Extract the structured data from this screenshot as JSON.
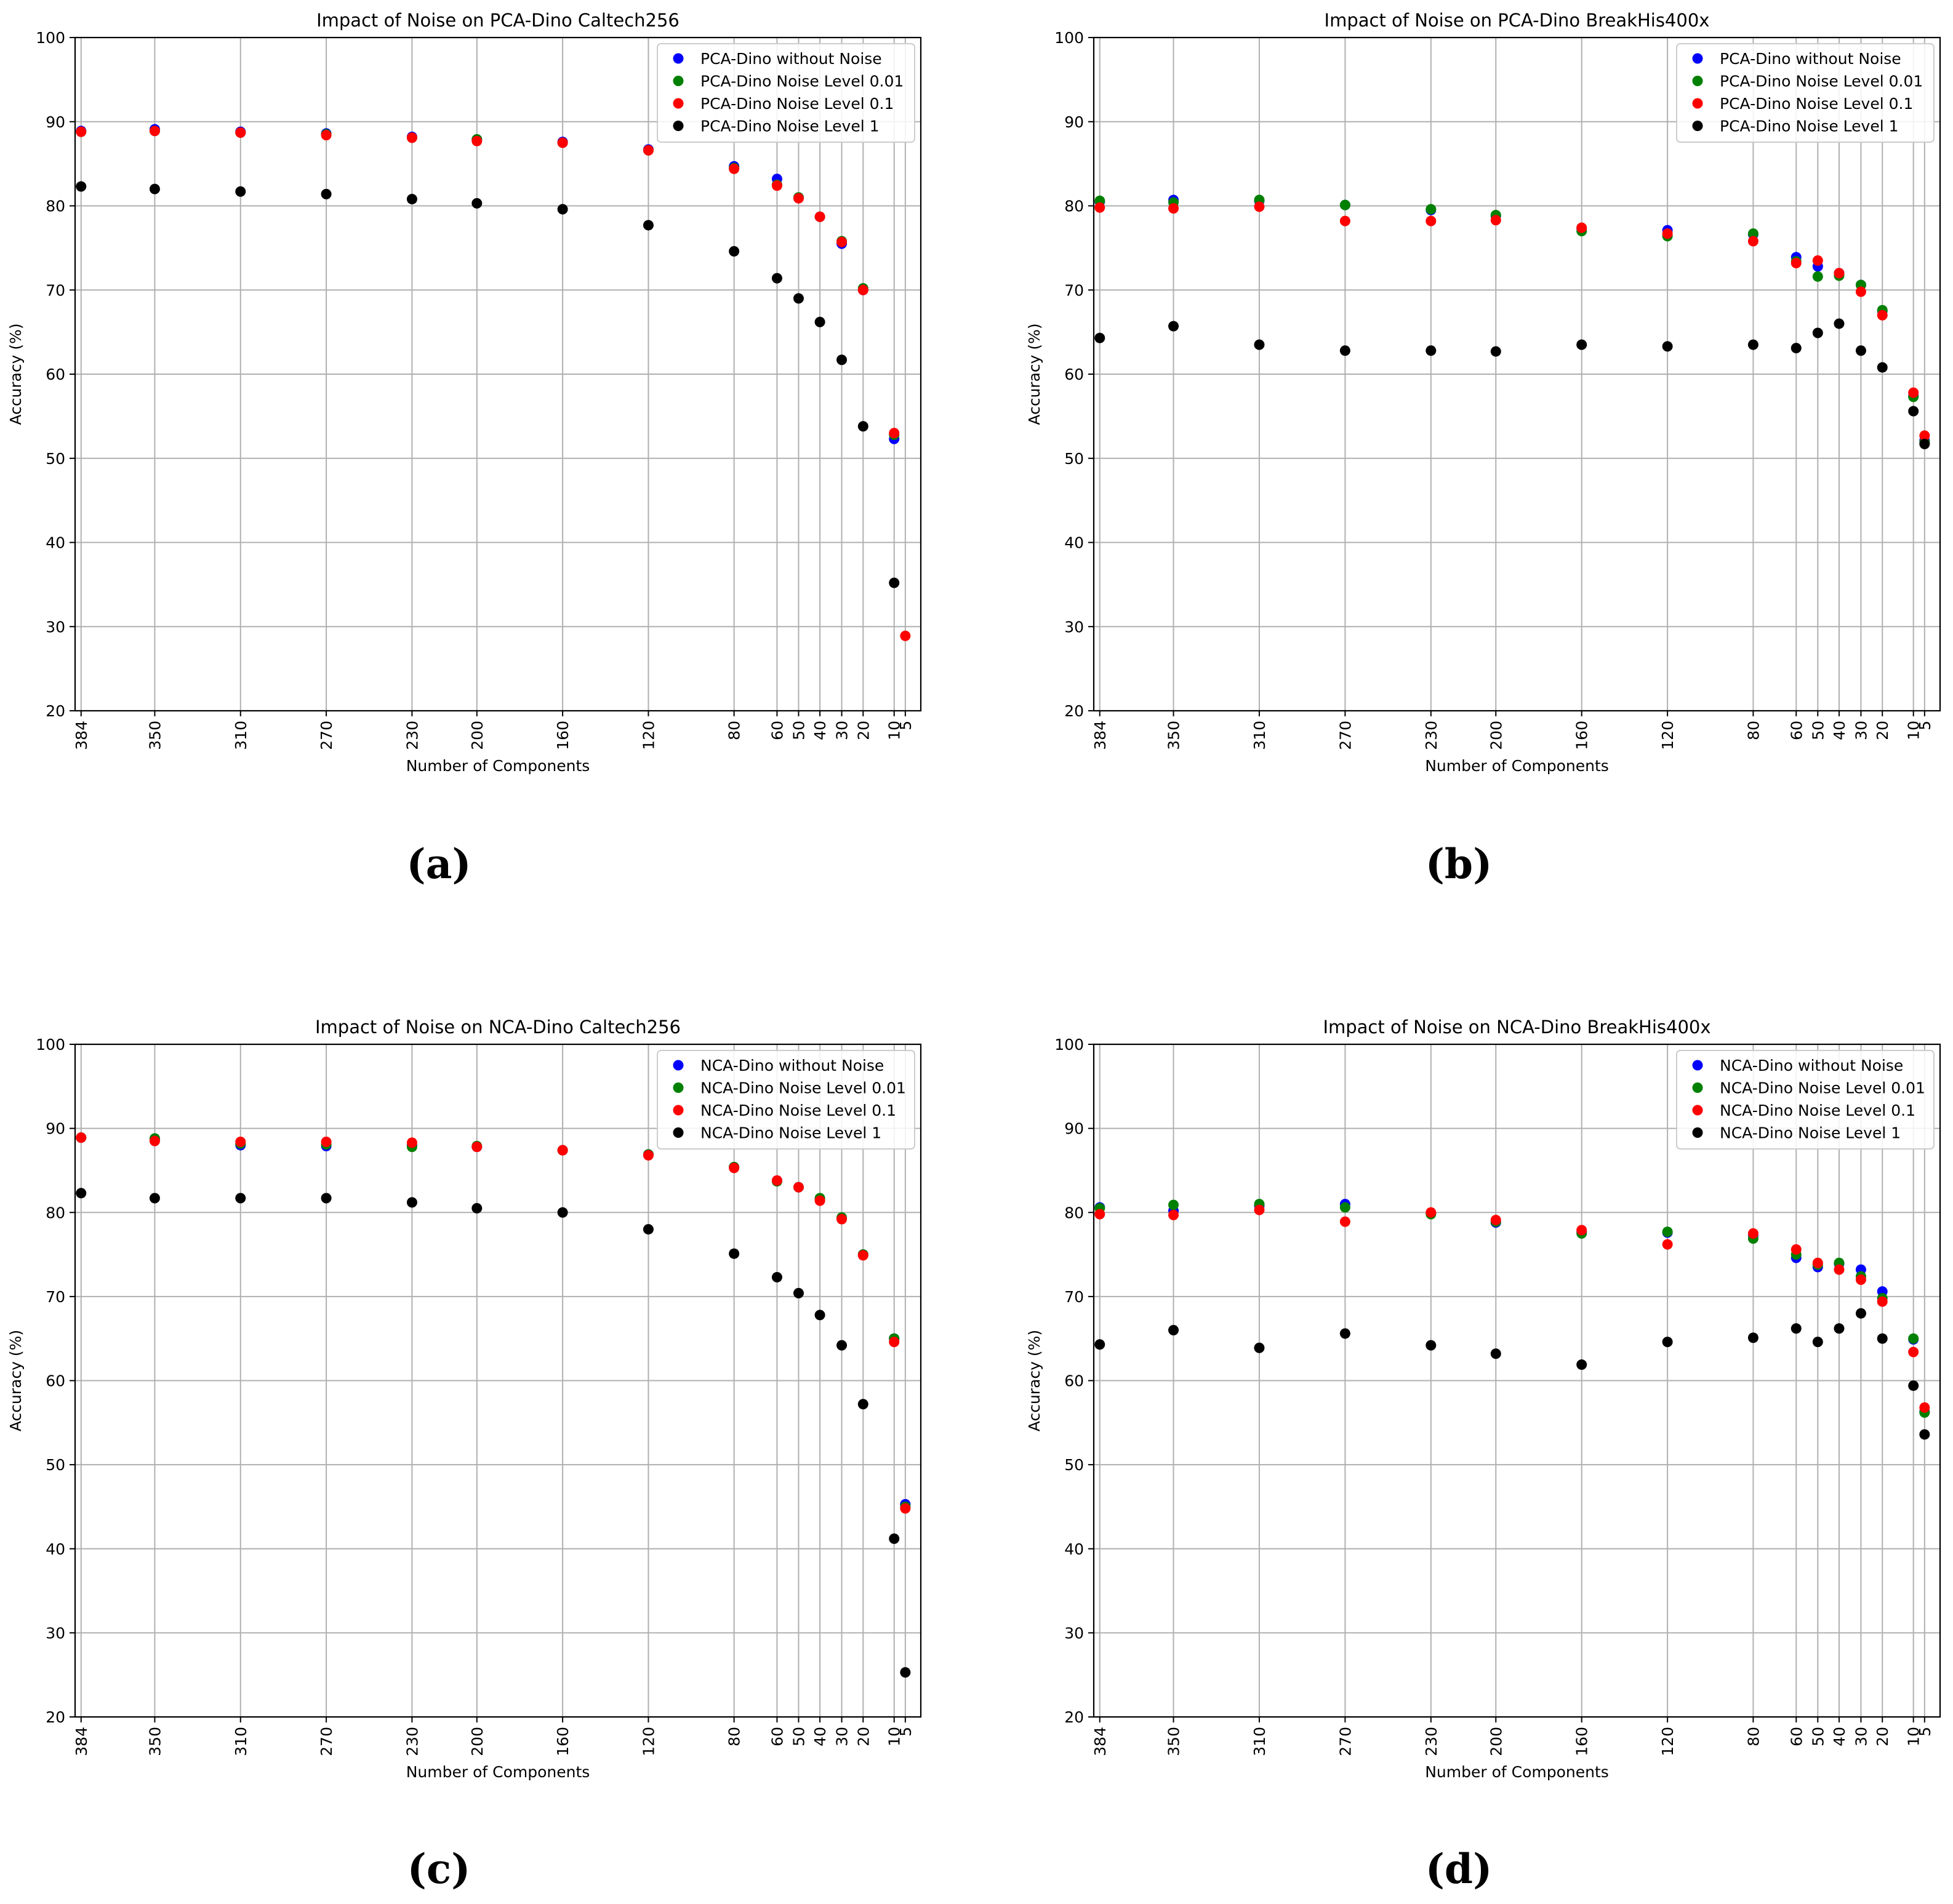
{
  "ticks": [
    "384",
    "350",
    "310",
    "270",
    "230",
    "200",
    "160",
    "120",
    "80",
    "60",
    "50",
    "40",
    "30",
    "20",
    "10",
    "5"
  ],
  "colors": {
    "none": "#0000ff",
    "n001": "#008000",
    "n01": "#ff0000",
    "n1": "#000000"
  },
  "chart_data": [
    {
      "type": "scatter",
      "caption": "(a)",
      "title": "Impact of Noise on PCA-Dino Caltech256",
      "xlabel": "Number of Components",
      "ylabel": "Accuracy (%)",
      "ylim": [
        20,
        100
      ],
      "yticks": [
        "20",
        "30",
        "40",
        "50",
        "60",
        "70",
        "80",
        "90",
        "100"
      ],
      "grid": true,
      "legend_position": "top-right",
      "categories": [
        "384",
        "350",
        "310",
        "270",
        "230",
        "200",
        "160",
        "120",
        "80",
        "60",
        "50",
        "40",
        "30",
        "20",
        "10",
        "5"
      ],
      "series": [
        {
          "name": "PCA-Dino without Noise",
          "color": "#0000ff",
          "values": [
            88.9,
            89.1,
            88.8,
            88.6,
            88.2,
            87.9,
            87.6,
            86.7,
            84.7,
            83.2,
            81.0,
            78.7,
            75.5,
            70.0,
            52.3,
            null
          ]
        },
        {
          "name": "PCA-Dino Noise Level 0.01",
          "color": "#008000",
          "values": [
            88.8,
            88.9,
            88.7,
            88.5,
            88.1,
            87.9,
            87.5,
            86.6,
            84.5,
            82.5,
            81.0,
            78.7,
            75.8,
            70.2,
            52.8,
            null
          ]
        },
        {
          "name": "PCA-Dino Noise Level 0.1",
          "color": "#ff0000",
          "values": [
            88.8,
            88.9,
            88.7,
            88.4,
            88.1,
            87.7,
            87.5,
            86.6,
            84.4,
            82.4,
            80.9,
            78.7,
            75.7,
            70.0,
            53.0,
            28.9
          ]
        },
        {
          "name": "PCA-Dino Noise Level 1",
          "color": "#000000",
          "values": [
            82.3,
            82.0,
            81.7,
            81.4,
            80.8,
            80.3,
            79.6,
            77.7,
            74.6,
            71.4,
            69.0,
            66.2,
            61.7,
            53.8,
            35.2,
            null
          ]
        }
      ]
    },
    {
      "type": "scatter",
      "caption": "(b)",
      "title": "Impact of Noise on PCA-Dino BreakHis400x",
      "xlabel": "Number of Components",
      "ylabel": "Accuracy (%)",
      "ylim": [
        20,
        100
      ],
      "yticks": [
        "20",
        "30",
        "40",
        "50",
        "60",
        "70",
        "80",
        "90",
        "100"
      ],
      "grid": true,
      "legend_position": "top-right",
      "categories": [
        "384",
        "350",
        "310",
        "270",
        "230",
        "200",
        "160",
        "120",
        "80",
        "60",
        "50",
        "40",
        "30",
        "20",
        "10",
        "5"
      ],
      "series": [
        {
          "name": "PCA-Dino without Noise",
          "color": "#0000ff",
          "values": [
            80.5,
            80.7,
            80.6,
            80.1,
            79.5,
            78.8,
            77.3,
            77.1,
            76.6,
            73.9,
            72.8,
            72.0,
            70.6,
            67.5,
            57.4,
            52.1
          ]
        },
        {
          "name": "PCA-Dino Noise Level 0.01",
          "color": "#008000",
          "values": [
            80.6,
            80.4,
            80.7,
            80.1,
            79.6,
            78.9,
            77.0,
            76.4,
            76.7,
            73.4,
            71.6,
            71.7,
            70.6,
            67.6,
            57.3,
            51.9
          ]
        },
        {
          "name": "PCA-Dino Noise Level 0.1",
          "color": "#ff0000",
          "values": [
            79.8,
            79.7,
            79.9,
            78.2,
            78.2,
            78.3,
            77.4,
            76.7,
            75.8,
            73.2,
            73.5,
            72.0,
            69.8,
            67.0,
            57.8,
            52.7
          ]
        },
        {
          "name": "PCA-Dino Noise Level 1",
          "color": "#000000",
          "values": [
            64.3,
            65.7,
            63.5,
            62.8,
            62.8,
            62.7,
            63.5,
            63.3,
            63.5,
            63.1,
            64.9,
            66.0,
            62.8,
            60.8,
            55.6,
            51.7
          ]
        }
      ]
    },
    {
      "type": "scatter",
      "caption": "(c)",
      "title": "Impact of Noise on NCA-Dino Caltech256",
      "xlabel": "Number of Components",
      "ylabel": "Accuracy (%)",
      "ylim": [
        20,
        100
      ],
      "yticks": [
        "20",
        "30",
        "40",
        "50",
        "60",
        "70",
        "80",
        "90",
        "100"
      ],
      "grid": true,
      "legend_position": "top-right",
      "categories": [
        "384",
        "350",
        "310",
        "270",
        "230",
        "200",
        "160",
        "120",
        "80",
        "60",
        "50",
        "40",
        "30",
        "20",
        "10",
        "5"
      ],
      "series": [
        {
          "name": "NCA-Dino without Noise",
          "color": "#0000ff",
          "values": [
            88.9,
            88.7,
            88.0,
            87.9,
            88.0,
            87.8,
            87.4,
            86.9,
            85.4,
            83.8,
            83.0,
            81.6,
            79.3,
            75.0,
            65.0,
            45.3
          ]
        },
        {
          "name": "NCA-Dino Noise Level 0.01",
          "color": "#008000",
          "values": [
            88.9,
            88.8,
            88.2,
            88.1,
            87.8,
            87.9,
            87.4,
            86.9,
            85.4,
            83.7,
            83.0,
            81.7,
            79.4,
            75.0,
            65.0,
            45.0
          ]
        },
        {
          "name": "NCA-Dino Noise Level 0.1",
          "color": "#ff0000",
          "values": [
            88.9,
            88.5,
            88.4,
            88.4,
            88.3,
            87.8,
            87.4,
            86.8,
            85.3,
            83.8,
            83.0,
            81.4,
            79.2,
            74.9,
            64.6,
            44.8
          ]
        },
        {
          "name": "NCA-Dino Noise Level 1",
          "color": "#000000",
          "values": [
            82.3,
            81.7,
            81.7,
            81.7,
            81.2,
            80.5,
            80.0,
            78.0,
            75.1,
            72.3,
            70.4,
            67.8,
            64.2,
            57.2,
            41.2,
            25.3
          ]
        }
      ]
    },
    {
      "type": "scatter",
      "caption": "(d)",
      "title": "Impact of Noise on NCA-Dino BreakHis400x",
      "xlabel": "Number of Components",
      "ylabel": "Accuracy (%)",
      "ylim": [
        20,
        100
      ],
      "yticks": [
        "20",
        "30",
        "40",
        "50",
        "60",
        "70",
        "80",
        "90",
        "100"
      ],
      "grid": true,
      "legend_position": "top-right",
      "categories": [
        "384",
        "350",
        "310",
        "270",
        "230",
        "200",
        "160",
        "120",
        "80",
        "60",
        "50",
        "40",
        "30",
        "20",
        "10",
        "5"
      ],
      "series": [
        {
          "name": "NCA-Dino without Noise",
          "color": "#0000ff",
          "values": [
            80.6,
            80.2,
            80.8,
            81.0,
            79.9,
            78.8,
            77.7,
            77.6,
            77.3,
            74.6,
            73.5,
            73.9,
            73.2,
            70.6,
            64.9,
            56.3
          ]
        },
        {
          "name": "NCA-Dino Noise Level 0.01",
          "color": "#008000",
          "values": [
            80.5,
            80.9,
            81.0,
            80.6,
            79.8,
            78.9,
            77.5,
            77.7,
            76.9,
            75.0,
            73.8,
            74.0,
            72.4,
            69.8,
            65.0,
            56.2
          ]
        },
        {
          "name": "NCA-Dino Noise Level 0.1",
          "color": "#ff0000",
          "values": [
            79.8,
            79.7,
            80.3,
            78.9,
            80.0,
            79.1,
            77.9,
            76.2,
            77.5,
            75.6,
            74.0,
            73.2,
            72.0,
            69.4,
            63.4,
            56.8
          ]
        },
        {
          "name": "NCA-Dino Noise Level 1",
          "color": "#000000",
          "values": [
            64.3,
            66.0,
            63.9,
            65.6,
            64.2,
            63.2,
            61.9,
            64.6,
            65.1,
            66.2,
            64.6,
            66.2,
            68.0,
            65.0,
            59.4,
            53.6
          ]
        }
      ]
    }
  ]
}
